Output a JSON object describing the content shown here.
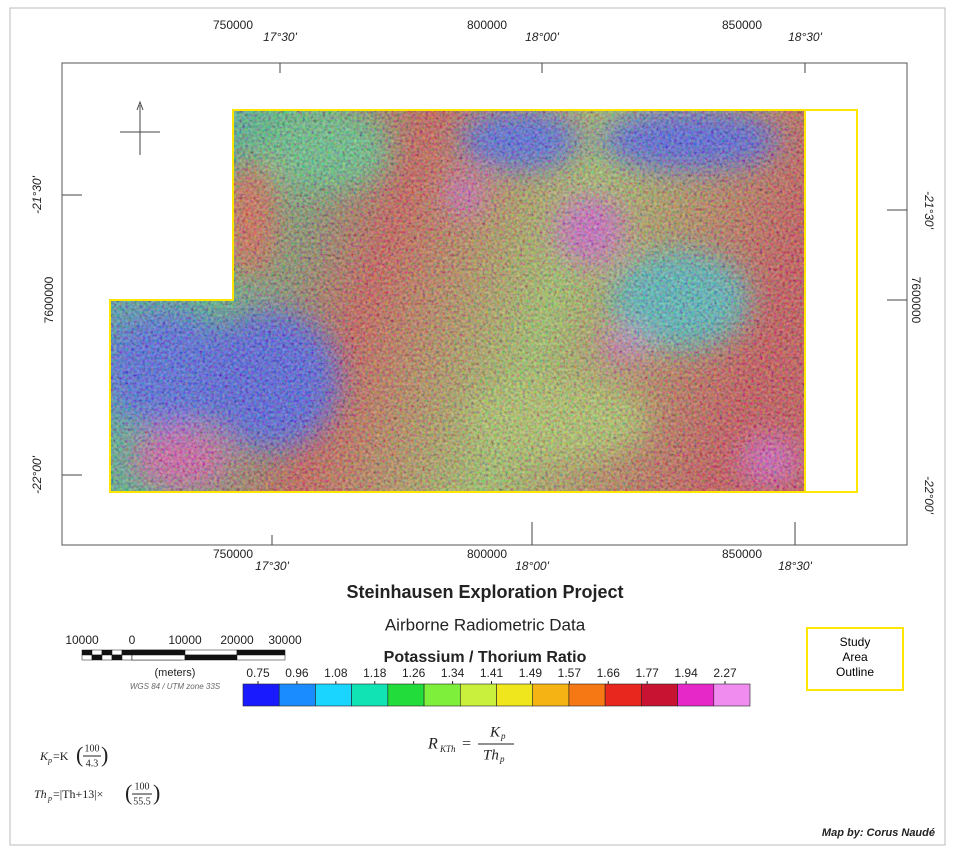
{
  "map": {
    "top_utm": [
      750000,
      800000,
      850000
    ],
    "top_deg": [
      "17°30'",
      "18°00'",
      "18°30'"
    ],
    "bottom_utm": [
      750000,
      800000,
      850000
    ],
    "bottom_deg": [
      "17°30'",
      "18°00'",
      "18°30'"
    ],
    "left_labels": [
      "-21°30'",
      7600000,
      "-22°00'"
    ],
    "right_labels": [
      "-21°30'",
      7600000,
      "-22°00'"
    ]
  },
  "title": "Steinhausen Exploration Project",
  "subtitle": "Airborne Radiometric Data",
  "product": "Potassium / Thorium Ratio",
  "scale_bar": {
    "labels": [
      10000,
      0,
      10000,
      20000,
      30000
    ],
    "unit": "(meters)",
    "projection": "WGS 84 / UTM zone 33S"
  },
  "study_area": {
    "lines": [
      "Study",
      "Area",
      "Outline"
    ]
  },
  "formulas": {
    "ratio": {
      "lhs": "R",
      "lhs_sub": "KTh",
      "eq": "=",
      "num": "K",
      "num_sub": "p",
      "den": "Th",
      "den_sub": "p"
    },
    "kp": {
      "lhs": "K",
      "sub": "p",
      "rhs": "=K",
      "num": "100",
      "den": "4.3"
    },
    "thp": {
      "lhs": "Th",
      "sub": "p",
      "rhs": "=|Th+13|×",
      "num": "100",
      "den": "55.5"
    }
  },
  "colorbar": {
    "values": [
      0.75,
      0.96,
      1.08,
      1.18,
      1.26,
      1.34,
      1.41,
      1.49,
      1.57,
      1.66,
      1.77,
      1.94,
      2.27
    ],
    "colors": [
      "#1a1aff",
      "#1a8cff",
      "#19d5ff",
      "#12e3b4",
      "#22dc3c",
      "#7ef03c",
      "#c8f03c",
      "#f0e61e",
      "#f5b414",
      "#f57814",
      "#e8281e",
      "#c81432",
      "#e628c8",
      "#f08cf0"
    ]
  },
  "credit": "Map by: Corus Naudé"
}
